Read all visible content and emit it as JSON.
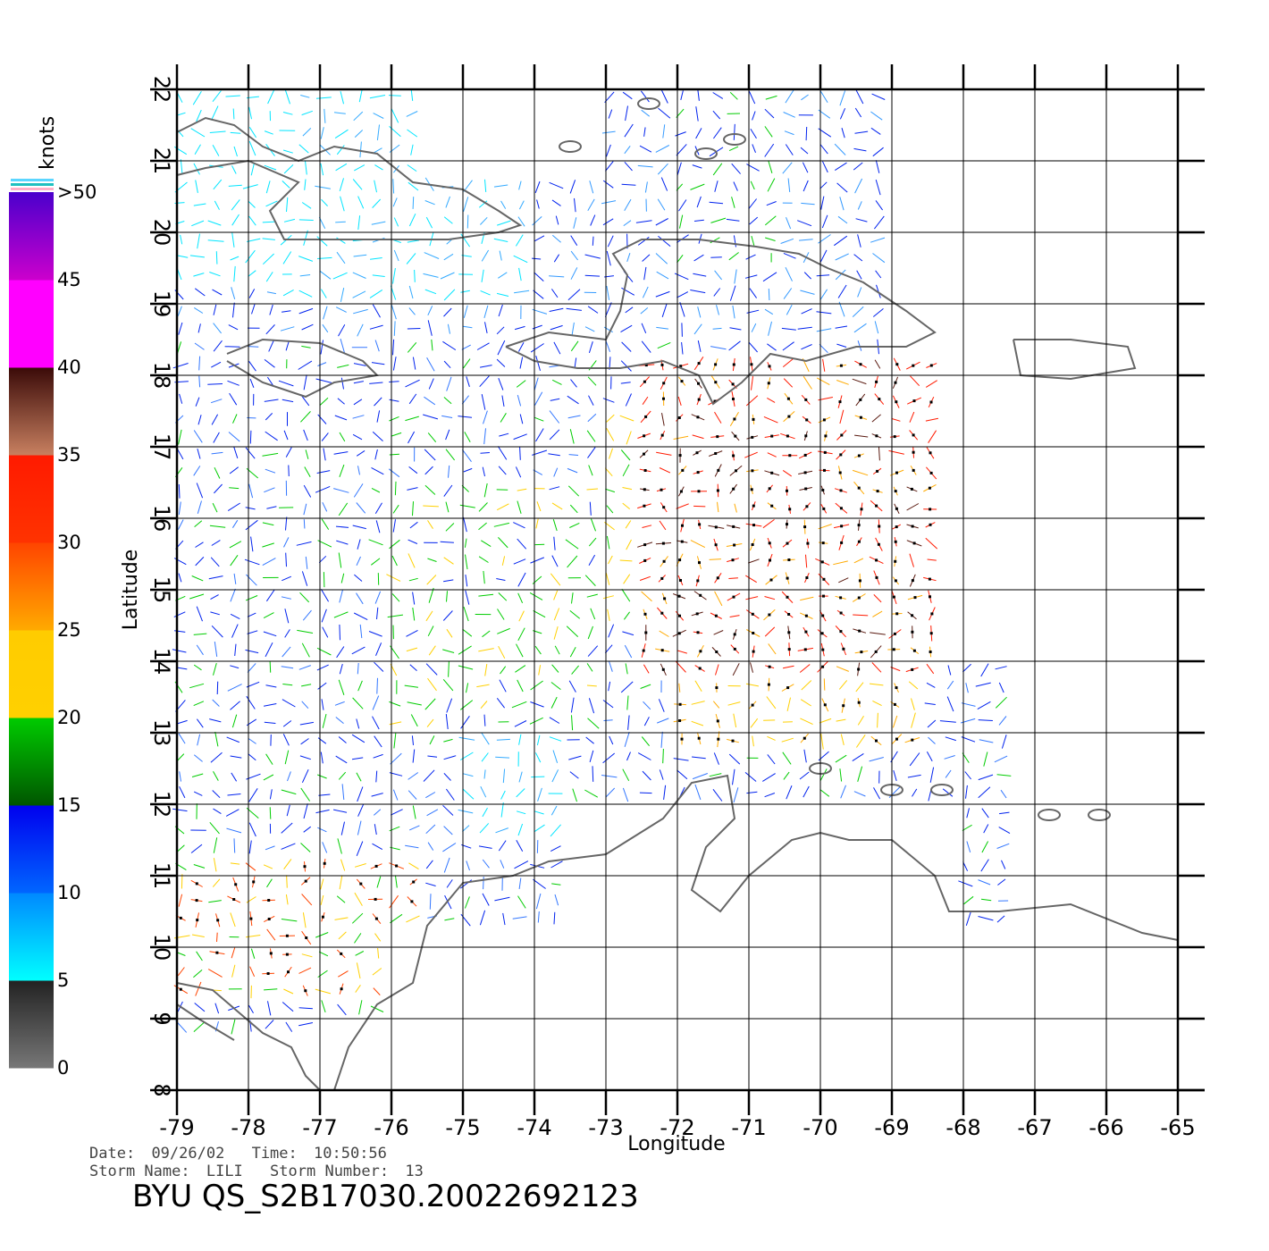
{
  "map": {
    "lon_ticks": [
      "-79",
      "-78",
      "-77",
      "-76",
      "-75",
      "-74",
      "-73",
      "-72",
      "-71",
      "-70",
      "-69",
      "-68",
      "-67",
      "-66",
      "-65"
    ],
    "lat_ticks": [
      "8",
      "9",
      "10",
      "11",
      "12",
      "13",
      "14",
      "15",
      "16",
      "17",
      "18",
      "19",
      "20",
      "21",
      "22"
    ],
    "xlabel": "Longitude",
    "ylabel": "Latitude",
    "lon_range": [
      -79,
      -65
    ],
    "lat_range": [
      8,
      22
    ],
    "grid": true
  },
  "colorbar": {
    "unit": "knots",
    "labels": [
      "0",
      "5",
      "10",
      "15",
      "20",
      "25",
      "30",
      "35",
      "40",
      "45",
      ">50"
    ],
    "colors": {
      "gray": "#777777",
      "cyan": "#00e5ff",
      "blue": "#0022ee",
      "green": "#00cc00",
      "yellow": "#ffd000",
      "orange": "#ff6a00",
      "red": "#ff1a00",
      "brown": "#5a1a10",
      "magenta": "#ee00ee",
      "purple": "#6a00cc",
      "coast": "#666666"
    }
  },
  "info": {
    "date_label": "Date:",
    "date": "09/26/02",
    "time_label": "Time:",
    "time": "10:50:56",
    "storm_name_label": "Storm Name:",
    "storm_name": "LILI",
    "storm_number_label": "Storm Number:",
    "storm_number": "13"
  },
  "footer": {
    "title": "BYU  QS_S2B17030.20022692123"
  }
}
